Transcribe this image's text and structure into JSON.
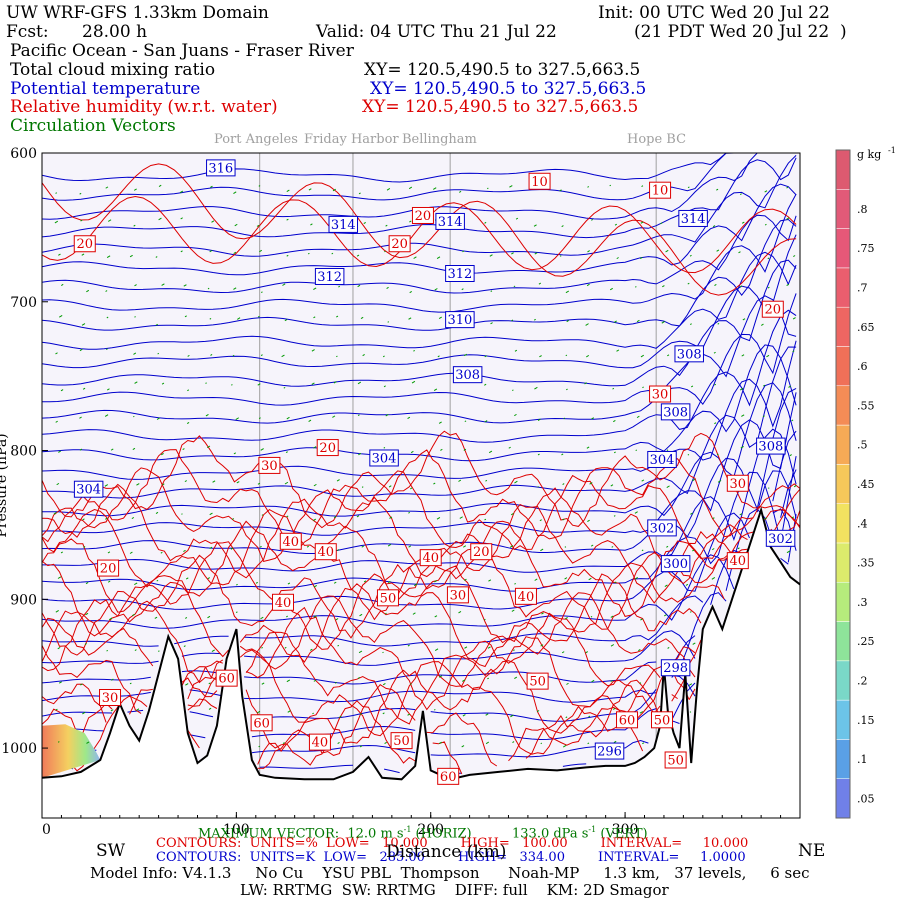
{
  "header": {
    "model_title": "UW WRF-GFS 1.33km Domain",
    "init": "Init: 00 UTC Wed 20 Jul 22",
    "fcst_label": "Fcst:",
    "fcst_value": "28.00 h",
    "valid": "Valid: 04 UTC Thu 21 Jul 22",
    "valid_local": "(21 PDT Wed 20 Jul 22  )",
    "region": "Pacific Ocean - San Juans - Fraser River",
    "var1": "Total cloud mixing ratio",
    "var1_xy": "XY= 120.5,490.5 to 327.5,663.5",
    "var2": "Potential temperature",
    "var2_xy": "XY= 120.5,490.5 to 327.5,663.5",
    "var3": "Relative humidity (w.r.t. water)",
    "var3_xy": "XY= 120.5,490.5 to 327.5,663.5",
    "var4": "Circulation Vectors"
  },
  "locations": [
    "Port Angeles",
    "Friday Harbor",
    "Bellingham",
    "Hope BC"
  ],
  "footer": {
    "sw": "SW",
    "ne": "NE",
    "max_vector": "MAXIMUM VECTOR:  12.0 m s",
    "max_vector_sup": "-1",
    "max_vector_h": " (HORIZ)",
    "max_vector_v": "133.0 dPa s",
    "max_vector_v_sup": "-1",
    "max_vector_vert": " (VERT)",
    "contours_red": "CONTOURS:  UNITS=%  LOW=   10.000        HIGH=   100.00        INTERVAL=     10.000",
    "contours_blue": "CONTOURS:  UNITS=K  LOW=   285.00        HIGH=   334.00        INTERVAL=     1.0000",
    "distance": "Distance (km)",
    "model_info": "Model Info: V4.1.3     No Cu    YSU PBL  Thompson      Noah-MP     1.3 km,   37 levels,     6 sec",
    "model_info2": "LW: RRTMG  SW: RRTMG    DIFF: full    KM: 2D Smagor"
  },
  "colorbar": {
    "unit": "g kg",
    "unit_sup": "-1",
    "labels": [
      ".8",
      ".75",
      ".7",
      ".65",
      ".6",
      ".55",
      ".5",
      ".45",
      ".4",
      ".35",
      ".3",
      ".25",
      ".2",
      ".15",
      ".1",
      ".05"
    ]
  },
  "colors": {
    "theta": "#0000cc",
    "rh": "#dd0000",
    "vectors": "#009900",
    "terrain": "#000000",
    "background": "#f6f4fb"
  },
  "chart_data": {
    "type": "cross-section",
    "xlabel": "Distance (km)",
    "x_ticks": [
      0,
      100,
      200,
      300
    ],
    "ylabel": "Pressure (hPa)",
    "y_ticks": [
      600,
      700,
      800,
      900,
      1000
    ],
    "xlim": [
      0,
      390
    ],
    "ylim": [
      1047,
      600
    ],
    "theta_labels": [
      {
        "x": 92,
        "p": 610,
        "v": "316"
      },
      {
        "x": 155,
        "p": 648,
        "v": "314"
      },
      {
        "x": 210,
        "p": 646,
        "v": "314"
      },
      {
        "x": 335,
        "p": 644,
        "v": "314"
      },
      {
        "x": 148,
        "p": 683,
        "v": "312"
      },
      {
        "x": 215,
        "p": 681,
        "v": "312"
      },
      {
        "x": 215,
        "p": 712,
        "v": "310"
      },
      {
        "x": 333,
        "p": 735,
        "v": "308"
      },
      {
        "x": 219,
        "p": 749,
        "v": "308"
      },
      {
        "x": 326,
        "p": 774,
        "v": "308"
      },
      {
        "x": 375,
        "p": 797,
        "v": "308"
      },
      {
        "x": 176,
        "p": 805,
        "v": "304"
      },
      {
        "x": 24,
        "p": 826,
        "v": "304"
      },
      {
        "x": 319,
        "p": 806,
        "v": "304"
      },
      {
        "x": 319,
        "p": 852,
        "v": "302"
      },
      {
        "x": 380,
        "p": 859,
        "v": "302"
      },
      {
        "x": 326,
        "p": 876,
        "v": "300"
      },
      {
        "x": 326,
        "p": 946,
        "v": "298"
      },
      {
        "x": 292,
        "p": 1002,
        "v": "296"
      }
    ],
    "rh_labels": [
      {
        "x": 256,
        "p": 619,
        "v": "10"
      },
      {
        "x": 318,
        "p": 625,
        "v": "10"
      },
      {
        "x": 22,
        "p": 661,
        "v": "20"
      },
      {
        "x": 196,
        "p": 642,
        "v": "20"
      },
      {
        "x": 184,
        "p": 661,
        "v": "20"
      },
      {
        "x": 376,
        "p": 705,
        "v": "20"
      },
      {
        "x": 147,
        "p": 798,
        "v": "20"
      },
      {
        "x": 226,
        "p": 868,
        "v": "20"
      },
      {
        "x": 34,
        "p": 879,
        "v": "20"
      },
      {
        "x": 117,
        "p": 810,
        "v": "30"
      },
      {
        "x": 318,
        "p": 762,
        "v": "30"
      },
      {
        "x": 358,
        "p": 822,
        "v": "30"
      },
      {
        "x": 214,
        "p": 897,
        "v": "30"
      },
      {
        "x": 35,
        "p": 966,
        "v": "30"
      },
      {
        "x": 128,
        "p": 861,
        "v": "40"
      },
      {
        "x": 146,
        "p": 868,
        "v": "40"
      },
      {
        "x": 200,
        "p": 872,
        "v": "40"
      },
      {
        "x": 124,
        "p": 902,
        "v": "40"
      },
      {
        "x": 249,
        "p": 898,
        "v": "40"
      },
      {
        "x": 143,
        "p": 996,
        "v": "40"
      },
      {
        "x": 178,
        "p": 899,
        "v": "50"
      },
      {
        "x": 185,
        "p": 995,
        "v": "50"
      },
      {
        "x": 255,
        "p": 955,
        "v": "50"
      },
      {
        "x": 95,
        "p": 953,
        "v": "60"
      },
      {
        "x": 113,
        "p": 983,
        "v": "60"
      },
      {
        "x": 209,
        "p": 1019,
        "v": "60"
      },
      {
        "x": 301,
        "p": 981,
        "v": "60"
      },
      {
        "x": 319,
        "p": 981,
        "v": "50"
      },
      {
        "x": 326,
        "p": 1008,
        "v": "50"
      },
      {
        "x": 358,
        "p": 874,
        "v": "40"
      }
    ],
    "terrain": [
      [
        0,
        1020
      ],
      [
        10,
        1019
      ],
      [
        20,
        1016
      ],
      [
        30,
        1008
      ],
      [
        35,
        990
      ],
      [
        40,
        970
      ],
      [
        45,
        985
      ],
      [
        50,
        995
      ],
      [
        55,
        975
      ],
      [
        60,
        950
      ],
      [
        65,
        925
      ],
      [
        70,
        940
      ],
      [
        75,
        990
      ],
      [
        80,
        1010
      ],
      [
        85,
        1005
      ],
      [
        90,
        985
      ],
      [
        95,
        940
      ],
      [
        100,
        920
      ],
      [
        103,
        965
      ],
      [
        108,
        1008
      ],
      [
        112,
        1018
      ],
      [
        120,
        1020
      ],
      [
        135,
        1021
      ],
      [
        150,
        1021
      ],
      [
        160,
        1016
      ],
      [
        168,
        1006
      ],
      [
        175,
        1020
      ],
      [
        185,
        1021
      ],
      [
        192,
        1012
      ],
      [
        196,
        975
      ],
      [
        200,
        1015
      ],
      [
        210,
        1021
      ],
      [
        220,
        1018
      ],
      [
        235,
        1016
      ],
      [
        250,
        1014
      ],
      [
        265,
        1015
      ],
      [
        280,
        1013
      ],
      [
        290,
        1012
      ],
      [
        300,
        1012
      ],
      [
        305,
        1010
      ],
      [
        310,
        1006
      ],
      [
        315,
        1000
      ],
      [
        318,
        985
      ],
      [
        320,
        945
      ],
      [
        322,
        975
      ],
      [
        325,
        990
      ],
      [
        328,
        1000
      ],
      [
        331,
        950
      ],
      [
        334,
        1010
      ],
      [
        337,
        960
      ],
      [
        340,
        920
      ],
      [
        345,
        905
      ],
      [
        350,
        920
      ],
      [
        355,
        900
      ],
      [
        360,
        880
      ],
      [
        365,
        860
      ],
      [
        370,
        840
      ],
      [
        375,
        865
      ],
      [
        380,
        875
      ],
      [
        385,
        885
      ],
      [
        390,
        890
      ]
    ]
  }
}
